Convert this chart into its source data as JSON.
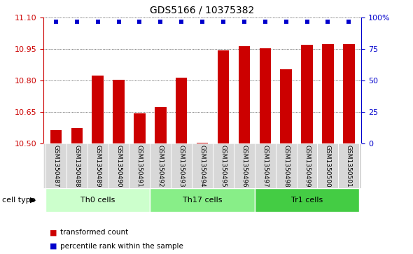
{
  "title": "GDS5166 / 10375382",
  "samples": [
    "GSM1350487",
    "GSM1350488",
    "GSM1350489",
    "GSM1350490",
    "GSM1350491",
    "GSM1350492",
    "GSM1350493",
    "GSM1350494",
    "GSM1350495",
    "GSM1350496",
    "GSM1350497",
    "GSM1350498",
    "GSM1350499",
    "GSM1350500",
    "GSM1350501"
  ],
  "bar_values": [
    10.565,
    10.575,
    10.825,
    10.805,
    10.645,
    10.675,
    10.815,
    10.505,
    10.945,
    10.965,
    10.955,
    10.855,
    10.97,
    10.975,
    10.975
  ],
  "percentile_values": [
    97,
    97,
    97,
    97,
    97,
    97,
    97,
    97,
    97,
    97,
    97,
    97,
    97,
    97,
    97
  ],
  "bar_color": "#cc0000",
  "dot_color": "#0000cc",
  "ymin": 10.5,
  "ymax": 11.1,
  "yticks": [
    10.5,
    10.65,
    10.8,
    10.95,
    11.1
  ],
  "right_yticks": [
    0,
    25,
    50,
    75,
    100
  ],
  "right_yticklabels": [
    "0",
    "25",
    "50",
    "75",
    "100%"
  ],
  "groups": [
    {
      "label": "Th0 cells",
      "start": 0,
      "end": 5,
      "color": "#ccffcc"
    },
    {
      "label": "Th17 cells",
      "start": 5,
      "end": 10,
      "color": "#88ee88"
    },
    {
      "label": "Tr1 cells",
      "start": 10,
      "end": 15,
      "color": "#44cc44"
    }
  ],
  "cell_type_label": "cell type",
  "legend_items": [
    {
      "label": "transformed count",
      "color": "#cc0000"
    },
    {
      "label": "percentile rank within the sample",
      "color": "#0000cc"
    }
  ],
  "plot_bg_color": "#ffffff",
  "label_bg_color": "#d8d8d8",
  "title_fontsize": 10,
  "axis_fontsize": 8,
  "label_fontsize": 6.5,
  "group_fontsize": 8
}
